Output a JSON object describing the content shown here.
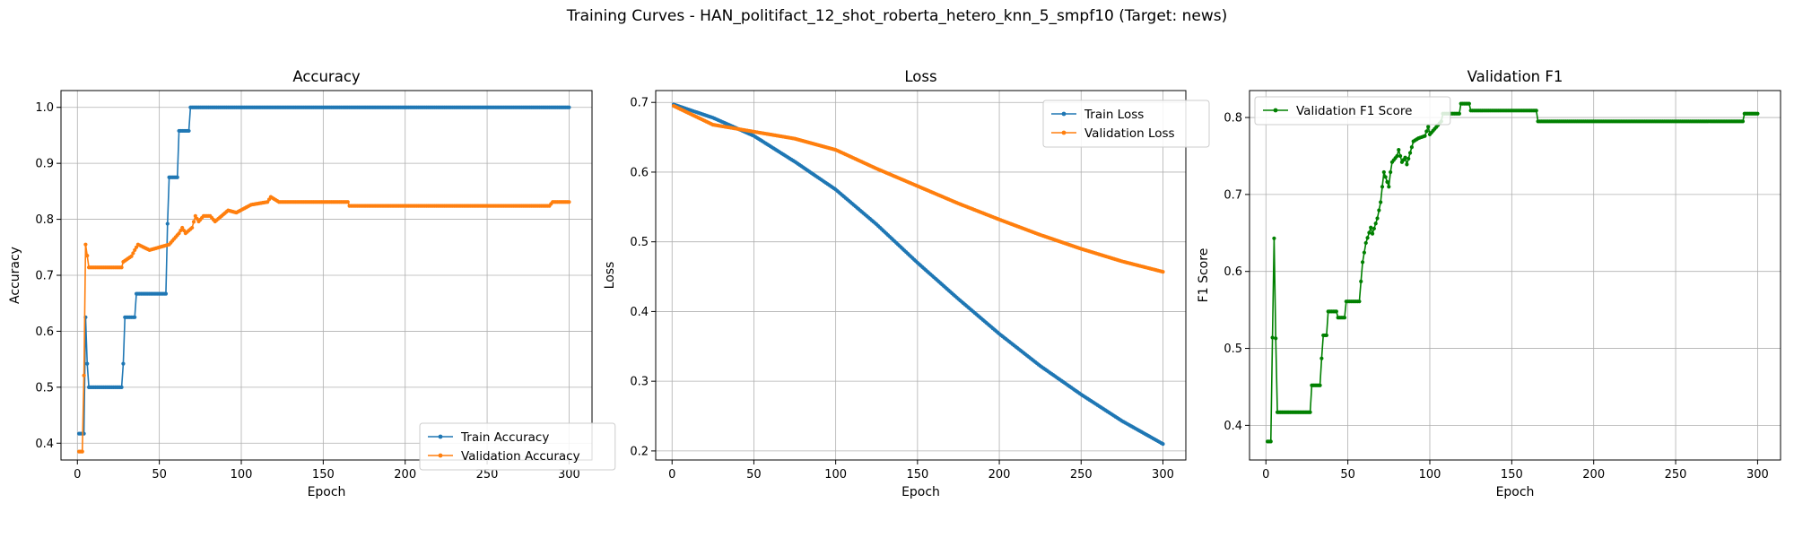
{
  "figure": {
    "title": "Training Curves - HAN_politifact_12_shot_roberta_hetero_knn_5_smpf10 (Target: news)"
  },
  "colors": {
    "train": "#1f77b4",
    "validation": "#ff7f0e",
    "f1": "#008000",
    "grid": "#b0b0b0"
  },
  "chart_data": [
    {
      "type": "line",
      "title": "Accuracy",
      "xlabel": "Epoch",
      "ylabel": "Accuracy",
      "xlim": [
        -10,
        314
      ],
      "ylim": [
        0.37,
        1.03
      ],
      "xticks": [
        0,
        50,
        100,
        150,
        200,
        250,
        300
      ],
      "yticks": [
        0.4,
        0.5,
        0.6,
        0.7,
        0.8,
        0.9,
        1.0
      ],
      "ytick_labels": [
        "0.4",
        "0.5",
        "0.6",
        "0.7",
        "0.8",
        "0.9",
        "1.0"
      ],
      "grid": true,
      "legend": "lower-right",
      "series": [
        {
          "name": "Train Accuracy",
          "color": "#1f77b4",
          "points": [
            [
              1,
              0.417
            ],
            [
              4,
              0.417
            ],
            [
              5,
              0.625
            ],
            [
              6,
              0.542
            ],
            [
              7,
              0.5
            ],
            [
              27,
              0.5
            ],
            [
              28,
              0.542
            ],
            [
              29,
              0.625
            ],
            [
              35,
              0.625
            ],
            [
              36,
              0.667
            ],
            [
              54,
              0.667
            ],
            [
              55,
              0.792
            ],
            [
              56,
              0.875
            ],
            [
              61,
              0.875
            ],
            [
              62,
              0.958
            ],
            [
              68,
              0.958
            ],
            [
              69,
              1.0
            ],
            [
              300,
              1.0
            ]
          ]
        },
        {
          "name": "Validation Accuracy",
          "color": "#ff7f0e",
          "points": [
            [
              1,
              0.385
            ],
            [
              3,
              0.385
            ],
            [
              4,
              0.521
            ],
            [
              5,
              0.755
            ],
            [
              6,
              0.735
            ],
            [
              7,
              0.714
            ],
            [
              27,
              0.714
            ],
            [
              28,
              0.724
            ],
            [
              33,
              0.734
            ],
            [
              35,
              0.745
            ],
            [
              37,
              0.755
            ],
            [
              44,
              0.745
            ],
            [
              56,
              0.755
            ],
            [
              59,
              0.765
            ],
            [
              62,
              0.775
            ],
            [
              64,
              0.785
            ],
            [
              66,
              0.775
            ],
            [
              70,
              0.785
            ],
            [
              72,
              0.806
            ],
            [
              74,
              0.796
            ],
            [
              77,
              0.806
            ],
            [
              81,
              0.806
            ],
            [
              84,
              0.796
            ],
            [
              88,
              0.806
            ],
            [
              92,
              0.816
            ],
            [
              97,
              0.812
            ],
            [
              106,
              0.826
            ],
            [
              116,
              0.831
            ],
            [
              118,
              0.84
            ],
            [
              123,
              0.831
            ],
            [
              165,
              0.831
            ],
            [
              166,
              0.824
            ],
            [
              288,
              0.824
            ],
            [
              290,
              0.831
            ],
            [
              300,
              0.831
            ]
          ]
        }
      ]
    },
    {
      "type": "line",
      "title": "Loss",
      "xlabel": "Epoch",
      "ylabel": "Loss",
      "xlim": [
        -10,
        314
      ],
      "ylim": [
        0.187,
        0.717
      ],
      "xticks": [
        0,
        50,
        100,
        150,
        200,
        250,
        300
      ],
      "yticks": [
        0.2,
        0.3,
        0.4,
        0.5,
        0.6,
        0.7
      ],
      "ytick_labels": [
        "0.2",
        "0.3",
        "0.4",
        "0.5",
        "0.6",
        "0.7"
      ],
      "grid": true,
      "legend": "upper-right",
      "series": [
        {
          "name": "Train Loss",
          "color": "#1f77b4",
          "points": [
            [
              1,
              0.697
            ],
            [
              25,
              0.678
            ],
            [
              50,
              0.652
            ],
            [
              75,
              0.615
            ],
            [
              100,
              0.575
            ],
            [
              125,
              0.525
            ],
            [
              150,
              0.47
            ],
            [
              175,
              0.418
            ],
            [
              200,
              0.368
            ],
            [
              225,
              0.322
            ],
            [
              250,
              0.281
            ],
            [
              275,
              0.243
            ],
            [
              300,
              0.21
            ]
          ]
        },
        {
          "name": "Validation Loss",
          "color": "#ff7f0e",
          "points": [
            [
              1,
              0.695
            ],
            [
              25,
              0.668
            ],
            [
              50,
              0.658
            ],
            [
              75,
              0.648
            ],
            [
              100,
              0.632
            ],
            [
              125,
              0.605
            ],
            [
              150,
              0.58
            ],
            [
              175,
              0.555
            ],
            [
              200,
              0.532
            ],
            [
              225,
              0.51
            ],
            [
              250,
              0.49
            ],
            [
              275,
              0.472
            ],
            [
              300,
              0.457
            ]
          ]
        }
      ]
    },
    {
      "type": "line",
      "title": "Validation F1",
      "xlabel": "Epoch",
      "ylabel": "F1 Score",
      "xlim": [
        -10,
        314
      ],
      "ylim": [
        0.355,
        0.835
      ],
      "xticks": [
        0,
        50,
        100,
        150,
        200,
        250,
        300
      ],
      "yticks": [
        0.4,
        0.5,
        0.6,
        0.7,
        0.8
      ],
      "ytick_labels": [
        "0.4",
        "0.5",
        "0.6",
        "0.7",
        "0.8"
      ],
      "grid": true,
      "legend": "upper-left",
      "series": [
        {
          "name": "Validation F1 Score",
          "color": "#008000",
          "points": [
            [
              1,
              0.379
            ],
            [
              3,
              0.379
            ],
            [
              4,
              0.514
            ],
            [
              5,
              0.643
            ],
            [
              6,
              0.513
            ],
            [
              7,
              0.417
            ],
            [
              27,
              0.417
            ],
            [
              28,
              0.452
            ],
            [
              33,
              0.452
            ],
            [
              34,
              0.487
            ],
            [
              35,
              0.517
            ],
            [
              37,
              0.517
            ],
            [
              38,
              0.548
            ],
            [
              43,
              0.548
            ],
            [
              44,
              0.54
            ],
            [
              48,
              0.54
            ],
            [
              49,
              0.561
            ],
            [
              57,
              0.561
            ],
            [
              58,
              0.587
            ],
            [
              59,
              0.612
            ],
            [
              61,
              0.637
            ],
            [
              64,
              0.657
            ],
            [
              65,
              0.649
            ],
            [
              68,
              0.669
            ],
            [
              70,
              0.69
            ],
            [
              71,
              0.71
            ],
            [
              72,
              0.729
            ],
            [
              75,
              0.71
            ],
            [
              76,
              0.729
            ],
            [
              77,
              0.742
            ],
            [
              80,
              0.75
            ],
            [
              81,
              0.758
            ],
            [
              83,
              0.742
            ],
            [
              85,
              0.748
            ],
            [
              86,
              0.739
            ],
            [
              90,
              0.769
            ],
            [
              93,
              0.773
            ],
            [
              97,
              0.776
            ],
            [
              99,
              0.788
            ],
            [
              100,
              0.778
            ],
            [
              107,
              0.795
            ],
            [
              108,
              0.805
            ],
            [
              118,
              0.805
            ],
            [
              119,
              0.818
            ],
            [
              124,
              0.818
            ],
            [
              125,
              0.809
            ],
            [
              165,
              0.809
            ],
            [
              166,
              0.795
            ],
            [
              291,
              0.795
            ],
            [
              292,
              0.805
            ],
            [
              300,
              0.805
            ]
          ]
        }
      ]
    }
  ]
}
